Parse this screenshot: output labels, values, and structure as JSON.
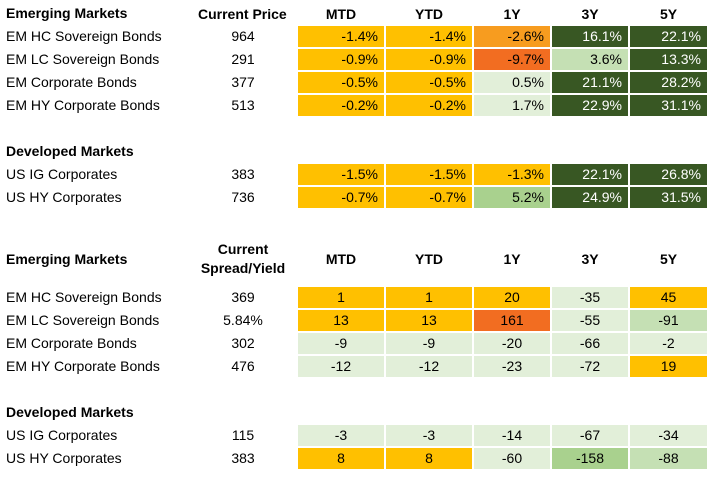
{
  "colors": {
    "orange_yellow": "#ffc000",
    "orange": "#f79c1f",
    "red_orange": "#f26d21",
    "light_green": "#e2efd9",
    "mid_green": "#a9d18e",
    "dark_green": "#385723"
  },
  "table1": {
    "section_label": "Emerging Markets",
    "price_header": "Current Price",
    "col_headers": [
      "MTD",
      "YTD",
      "1Y",
      "3Y",
      "5Y"
    ],
    "rows": [
      {
        "name": "EM HC Sovereign Bonds",
        "price": "964",
        "values": [
          "-1.4%",
          "-1.4%",
          "-2.6%",
          "16.1%",
          "22.1%"
        ],
        "colors": [
          "#ffc000",
          "#ffc000",
          "#f79c1f",
          "#385723",
          "#385723"
        ]
      },
      {
        "name": "EM LC Sovereign Bonds",
        "price": "291",
        "values": [
          "-0.9%",
          "-0.9%",
          "-9.7%",
          "3.6%",
          "13.3%"
        ],
        "colors": [
          "#ffc000",
          "#ffc000",
          "#f26d21",
          "#c5e0b4",
          "#385723"
        ]
      },
      {
        "name": "EM Corporate Bonds",
        "price": "377",
        "values": [
          "-0.5%",
          "-0.5%",
          "0.5%",
          "21.1%",
          "28.2%"
        ],
        "colors": [
          "#ffc000",
          "#ffc000",
          "#e2efd9",
          "#385723",
          "#385723"
        ]
      },
      {
        "name": "EM HY Corporate Bonds",
        "price": "513",
        "values": [
          "-0.2%",
          "-0.2%",
          "1.7%",
          "22.9%",
          "31.1%"
        ],
        "colors": [
          "#ffc000",
          "#ffc000",
          "#e2efd9",
          "#385723",
          "#385723"
        ]
      }
    ],
    "dev_label": "Developed Markets",
    "dev_rows": [
      {
        "name": "US IG Corporates",
        "price": "383",
        "values": [
          "-1.5%",
          "-1.5%",
          "-1.3%",
          "22.1%",
          "26.8%"
        ],
        "colors": [
          "#ffc000",
          "#ffc000",
          "#ffc000",
          "#385723",
          "#385723"
        ]
      },
      {
        "name": "US HY Corporates",
        "price": "736",
        "values": [
          "-0.7%",
          "-0.7%",
          "5.2%",
          "24.9%",
          "31.5%"
        ],
        "colors": [
          "#ffc000",
          "#ffc000",
          "#a9d18e",
          "#385723",
          "#385723"
        ]
      }
    ]
  },
  "table2": {
    "section_label": "Emerging Markets",
    "spread_header_1": "Current",
    "spread_header_2": "Spread/Yield",
    "col_headers": [
      "MTD",
      "YTD",
      "1Y",
      "3Y",
      "5Y"
    ],
    "rows": [
      {
        "name": "EM HC Sovereign Bonds",
        "price": "369",
        "values": [
          "1",
          "1",
          "20",
          "-35",
          "45"
        ],
        "colors": [
          "#ffc000",
          "#ffc000",
          "#ffc000",
          "#e2efd9",
          "#ffc000"
        ]
      },
      {
        "name": "EM LC Sovereign Bonds",
        "price": "5.84%",
        "values": [
          "13",
          "13",
          "161",
          "-55",
          "-91"
        ],
        "colors": [
          "#ffc000",
          "#ffc000",
          "#f26d21",
          "#e2efd9",
          "#c5e0b4"
        ]
      },
      {
        "name": "EM Corporate Bonds",
        "price": "302",
        "values": [
          "-9",
          "-9",
          "-20",
          "-66",
          "-2"
        ],
        "colors": [
          "#e2efd9",
          "#e2efd9",
          "#e2efd9",
          "#e2efd9",
          "#e2efd9"
        ]
      },
      {
        "name": "EM HY Corporate Bonds",
        "price": "476",
        "values": [
          "-12",
          "-12",
          "-23",
          "-72",
          "19"
        ],
        "colors": [
          "#e2efd9",
          "#e2efd9",
          "#e2efd9",
          "#e2efd9",
          "#ffc000"
        ]
      }
    ],
    "dev_label": "Developed Markets",
    "dev_rows": [
      {
        "name": "US IG Corporates",
        "price": "115",
        "values": [
          "-3",
          "-3",
          "-14",
          "-67",
          "-34"
        ],
        "colors": [
          "#e2efd9",
          "#e2efd9",
          "#e2efd9",
          "#e2efd9",
          "#e2efd9"
        ]
      },
      {
        "name": "US HY Corporates",
        "price": "383",
        "values": [
          "8",
          "8",
          "-60",
          "-158",
          "-88"
        ],
        "colors": [
          "#ffc000",
          "#ffc000",
          "#e2efd9",
          "#a9d18e",
          "#c5e0b4"
        ]
      }
    ]
  }
}
